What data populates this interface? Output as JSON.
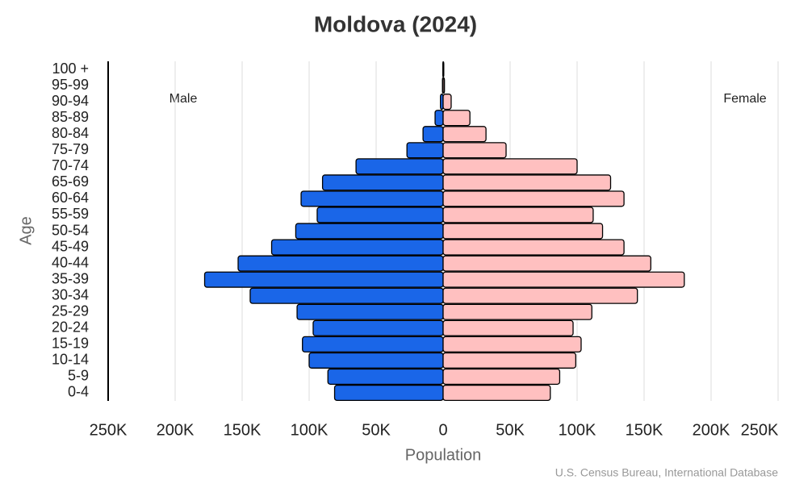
{
  "chart_data": {
    "type": "pyramid",
    "title": "Moldova (2024)",
    "x_label": "Population",
    "y_label": "Age",
    "source": "U.S. Census Bureau, International Database",
    "categories": [
      "0-4",
      "5-9",
      "10-14",
      "15-19",
      "20-24",
      "25-29",
      "30-34",
      "35-39",
      "40-44",
      "45-49",
      "50-54",
      "55-59",
      "60-64",
      "65-69",
      "70-74",
      "75-79",
      "80-84",
      "85-89",
      "90-94",
      "95-99",
      "100 +"
    ],
    "series": [
      {
        "name": "Male",
        "color": "#1a66e8",
        "values": [
          -81000,
          -86000,
          -100000,
          -105000,
          -97000,
          -109000,
          -144000,
          -178000,
          -153000,
          -128000,
          -110000,
          -94000,
          -106000,
          -90000,
          -65000,
          -27000,
          -15000,
          -6000,
          -2000,
          -500,
          -200
        ]
      },
      {
        "name": "Female",
        "color": "#ffc0c0",
        "values": [
          80000,
          87000,
          99000,
          103000,
          97000,
          111000,
          145000,
          180000,
          155000,
          135000,
          119000,
          112000,
          135000,
          125000,
          100000,
          47000,
          32000,
          20000,
          6000,
          1000,
          500
        ]
      }
    ],
    "xlim": [
      -250000,
      250000
    ],
    "xticks": [
      {
        "value": -250000,
        "label": "250K"
      },
      {
        "value": -200000,
        "label": "200K"
      },
      {
        "value": -150000,
        "label": "150K"
      },
      {
        "value": -100000,
        "label": "100K"
      },
      {
        "value": -50000,
        "label": "50K"
      },
      0,
      {
        "value": 50000,
        "label": "50K"
      },
      {
        "value": 100000,
        "label": "100K"
      },
      {
        "value": 150000,
        "label": "150K"
      },
      {
        "value": 200000,
        "label": "200K"
      },
      {
        "value": 250000,
        "label": "250K"
      }
    ],
    "grid": true
  }
}
